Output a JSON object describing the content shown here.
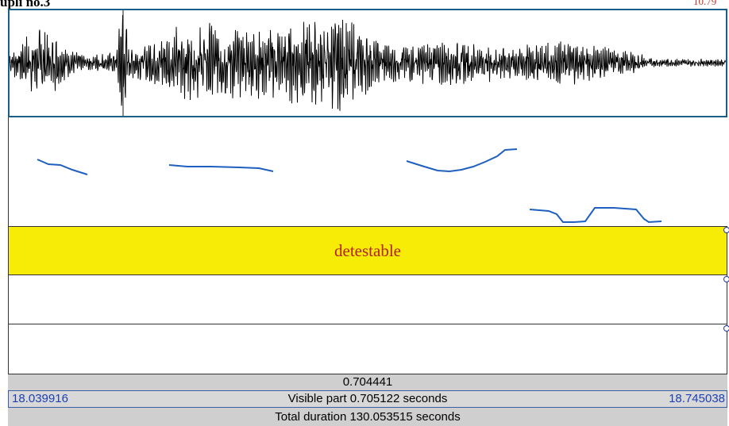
{
  "header": {
    "title_fragment": "upli no.3",
    "topright_fragment": "10.79"
  },
  "tiers": {
    "tier1_label": "detestable"
  },
  "colors": {
    "waveform": "#000000",
    "pitch": "#1f5fbf",
    "tier_highlight": "#f7ec05",
    "tier_text": "#b22222",
    "time_values": "#1d3fb3"
  },
  "status": {
    "selection_duration": "0.704441",
    "visible_start": "18.039916",
    "visible_part": "Visible part 0.705122 seconds",
    "visible_end": "18.745038",
    "total_duration": "Total duration 130.053515 seconds"
  }
}
